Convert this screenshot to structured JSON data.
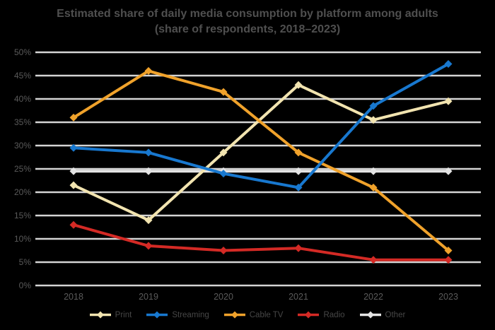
{
  "chart_data": {
    "type": "line",
    "title": "Estimated share of daily media consumption by platform among adults",
    "subtitle": "(share of respondents, 2018–2023)",
    "categories": [
      "2018",
      "2019",
      "2020",
      "2021",
      "2022",
      "2023"
    ],
    "series": [
      {
        "name": "Print",
        "color": "#f2e4b0",
        "values": [
          21.5,
          14.0,
          28.5,
          43.0,
          35.5,
          39.5
        ]
      },
      {
        "name": "Streaming",
        "color": "#1878cf",
        "values": [
          29.5,
          28.5,
          24.0,
          21.0,
          38.5,
          47.5
        ]
      },
      {
        "name": "Cable TV",
        "color": "#f0a22b",
        "values": [
          36.0,
          46.0,
          41.5,
          28.5,
          21.0,
          7.5
        ]
      },
      {
        "name": "Radio",
        "color": "#d42a25",
        "values": [
          13.0,
          8.5,
          7.5,
          8.0,
          5.5,
          5.5
        ]
      },
      {
        "name": "Other",
        "color": "#e4e4e4",
        "values": [
          24.5,
          24.5,
          24.5,
          24.5,
          24.5,
          24.5
        ]
      }
    ],
    "yticks": [
      "0%",
      "5%",
      "10%",
      "15%",
      "20%",
      "25%",
      "30%",
      "35%",
      "40%",
      "45%",
      "50%"
    ],
    "ylim": [
      0,
      50
    ],
    "ytick_step": 5,
    "xlabel": "",
    "ylabel": "",
    "grid": true,
    "legend_position": "bottom",
    "marker": "diamond"
  },
  "colors": {
    "background": "#000000",
    "gridline": "#d4d4d4",
    "title_text": "#4f4f4f",
    "axis_text": "#5a5a5a",
    "legend_text": "#474747"
  }
}
